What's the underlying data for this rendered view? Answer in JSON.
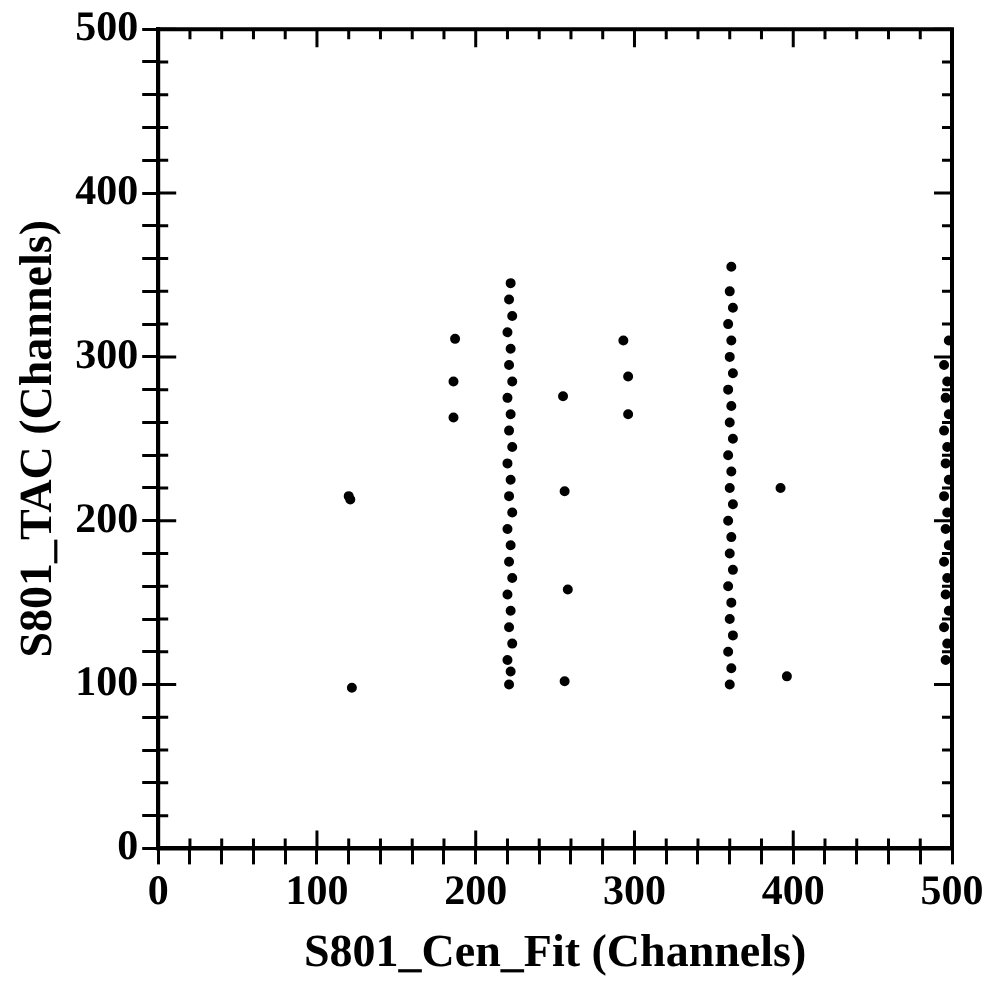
{
  "chart_data": {
    "type": "scatter",
    "xlabel": "S801_Cen_Fit (Channels)",
    "ylabel": "S801_TAC (Channels)",
    "xlim": [
      0,
      500
    ],
    "ylim": [
      0,
      500
    ],
    "xticks": [
      0,
      {
        "value": 20,
        "label": null
      },
      {
        "value": 40,
        "label": null
      },
      {
        "value": 60,
        "label": null
      },
      {
        "value": 80,
        "label": null
      },
      100,
      {
        "value": 120,
        "label": null
      },
      {
        "value": 140,
        "label": null
      },
      {
        "value": 160,
        "label": null
      },
      {
        "value": 180,
        "label": null
      },
      200,
      {
        "value": 220,
        "label": null
      },
      {
        "value": 240,
        "label": null
      },
      {
        "value": 260,
        "label": null
      },
      {
        "value": 280,
        "label": null
      },
      300,
      {
        "value": 320,
        "label": null
      },
      {
        "value": 340,
        "label": null
      },
      {
        "value": 360,
        "label": null
      },
      {
        "value": 380,
        "label": null
      },
      400,
      {
        "value": 420,
        "label": null
      },
      {
        "value": 440,
        "label": null
      },
      {
        "value": 460,
        "label": null
      },
      {
        "value": 480,
        "label": null
      },
      500
    ],
    "yticks": [
      0,
      {
        "value": 20,
        "label": null
      },
      {
        "value": 40,
        "label": null
      },
      {
        "value": 60,
        "label": null
      },
      {
        "value": 80,
        "label": null
      },
      100,
      {
        "value": 120,
        "label": null
      },
      {
        "value": 140,
        "label": null
      },
      {
        "value": 160,
        "label": null
      },
      {
        "value": 180,
        "label": null
      },
      200,
      {
        "value": 220,
        "label": null
      },
      {
        "value": 240,
        "label": null
      },
      {
        "value": 260,
        "label": null
      },
      {
        "value": 280,
        "label": null
      },
      300,
      {
        "value": 320,
        "label": null
      },
      {
        "value": 340,
        "label": null
      },
      {
        "value": 360,
        "label": null
      },
      {
        "value": 380,
        "label": null
      },
      400,
      {
        "value": 420,
        "label": null
      },
      {
        "value": 440,
        "label": null
      },
      {
        "value": 460,
        "label": null
      },
      {
        "value": 480,
        "label": null
      },
      500
    ],
    "grid": false,
    "legend": false,
    "marker": "circle",
    "series": [
      {
        "color": "#000000",
        "x": [
          120,
          121,
          122,
          187,
          186,
          186,
          255,
          256,
          258,
          256,
          296,
          296,
          293,
          392,
          396,
          221,
          222,
          220,
          223,
          221,
          222,
          220,
          223,
          221,
          222,
          220,
          223,
          221,
          222,
          220,
          223,
          221,
          222,
          220,
          223,
          221,
          222,
          220,
          223,
          221,
          222,
          360,
          361,
          359,
          362,
          360,
          361,
          359,
          362,
          360,
          361,
          359,
          362,
          360,
          361,
          359,
          362,
          360,
          361,
          359,
          362,
          360,
          361,
          359,
          362,
          360,
          361,
          496,
          497,
          495,
          498,
          496,
          497,
          495,
          498,
          496,
          497,
          495,
          498,
          496,
          497,
          495,
          498,
          496,
          497,
          495,
          498
        ],
        "values": [
          215,
          213,
          98,
          311,
          285,
          263,
          276,
          218,
          158,
          102,
          288,
          265,
          310,
          220,
          105,
          100,
          108,
          115,
          125,
          135,
          145,
          155,
          165,
          175,
          185,
          195,
          205,
          215,
          225,
          235,
          245,
          255,
          265,
          275,
          285,
          295,
          305,
          315,
          325,
          335,
          345,
          100,
          110,
          120,
          130,
          140,
          150,
          160,
          170,
          180,
          190,
          200,
          210,
          220,
          230,
          240,
          250,
          260,
          270,
          280,
          290,
          300,
          310,
          320,
          330,
          340,
          355,
          115,
          125,
          135,
          145,
          155,
          165,
          175,
          185,
          195,
          205,
          215,
          225,
          235,
          245,
          255,
          265,
          275,
          285,
          295,
          310
        ]
      }
    ]
  }
}
